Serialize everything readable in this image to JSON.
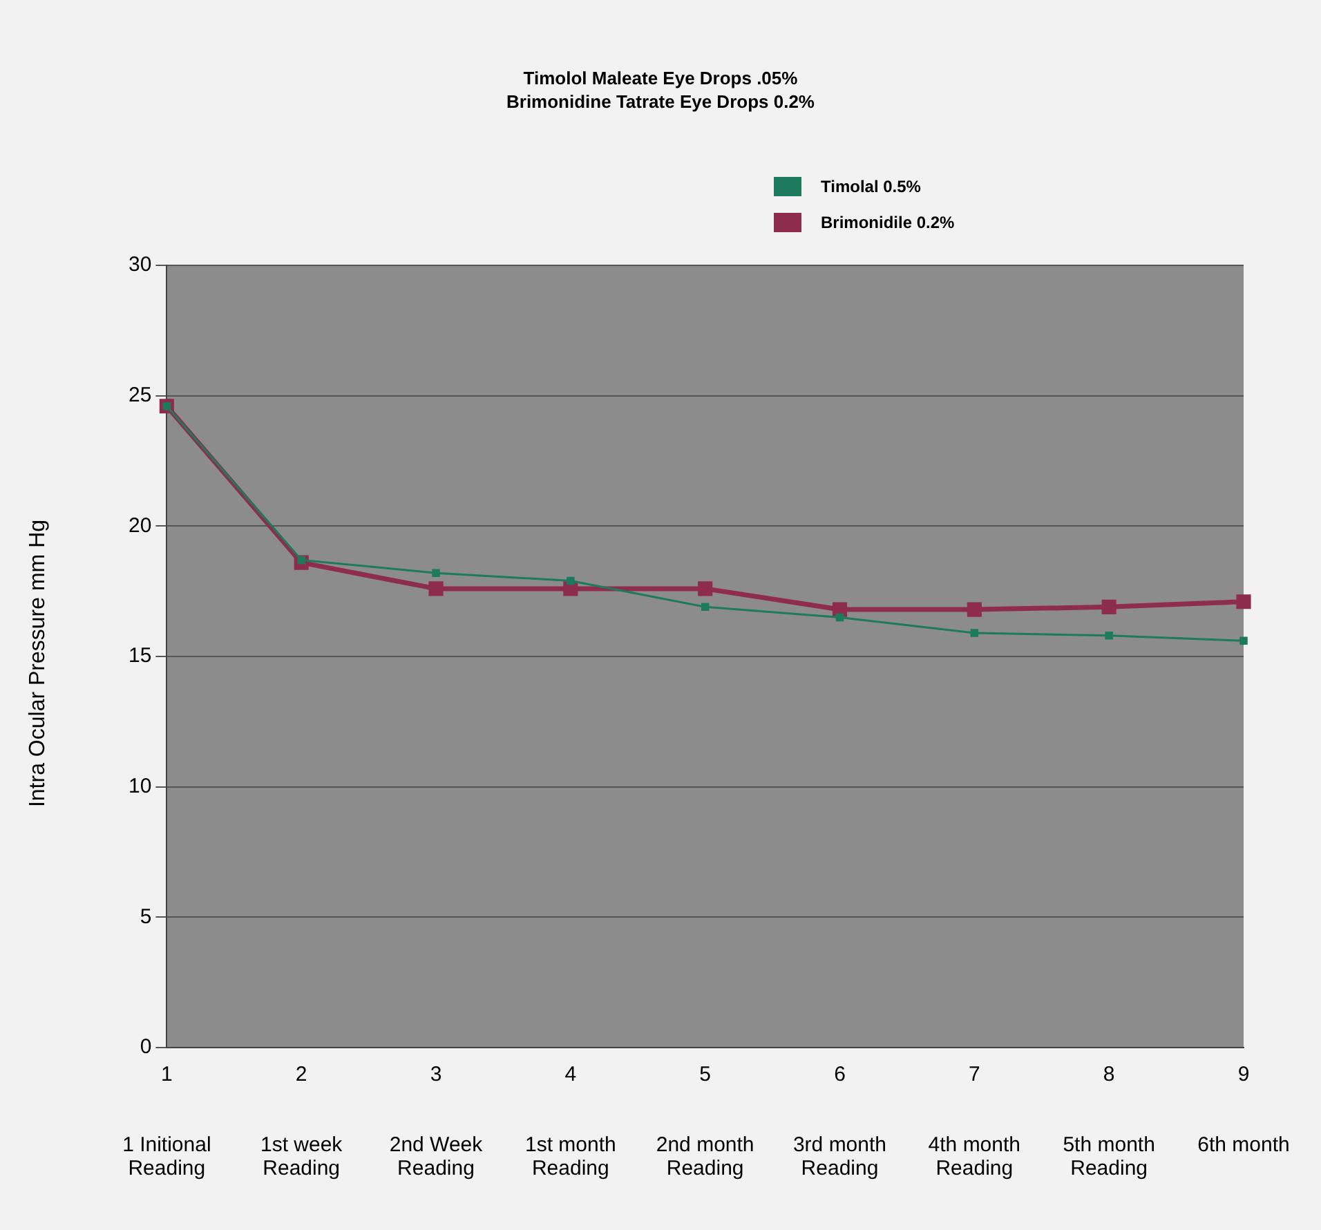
{
  "chart_data": {
    "type": "line",
    "title": "Timolol Maleate Eye Drops .05%",
    "subtitle": "Brimonidine Tatrate Eye Drops 0.2%",
    "ylabel": "Intra Ocular Pressure mm Hg",
    "categories": [
      "1",
      "2",
      "3",
      "4",
      "5",
      "6",
      "7",
      "8",
      "9"
    ],
    "series": [
      {
        "name": "Timolal 0.5%",
        "color": "#1e7a5c",
        "values": [
          24.6,
          18.7,
          18.2,
          17.9,
          16.9,
          16.5,
          15.9,
          15.8,
          15.6
        ]
      },
      {
        "name": "Brimonidile 0.2%",
        "color": "#8e2c4e",
        "values": [
          24.6,
          18.6,
          17.6,
          17.6,
          17.6,
          16.8,
          16.8,
          16.9,
          17.1
        ]
      }
    ],
    "ylim": [
      0,
      30
    ],
    "yticks": [
      0,
      5,
      10,
      15,
      20,
      25,
      30
    ],
    "grid": "y",
    "legend": "top right",
    "marker": "square",
    "line_style": "solid",
    "annotations": [
      "1 Initional Reading",
      "1st week Reading",
      "2nd Week Reading",
      "1st month Reading",
      "2nd month Reading",
      "3rd month Reading",
      "4th month Reading",
      "5th month Reading",
      "6th month"
    ]
  }
}
